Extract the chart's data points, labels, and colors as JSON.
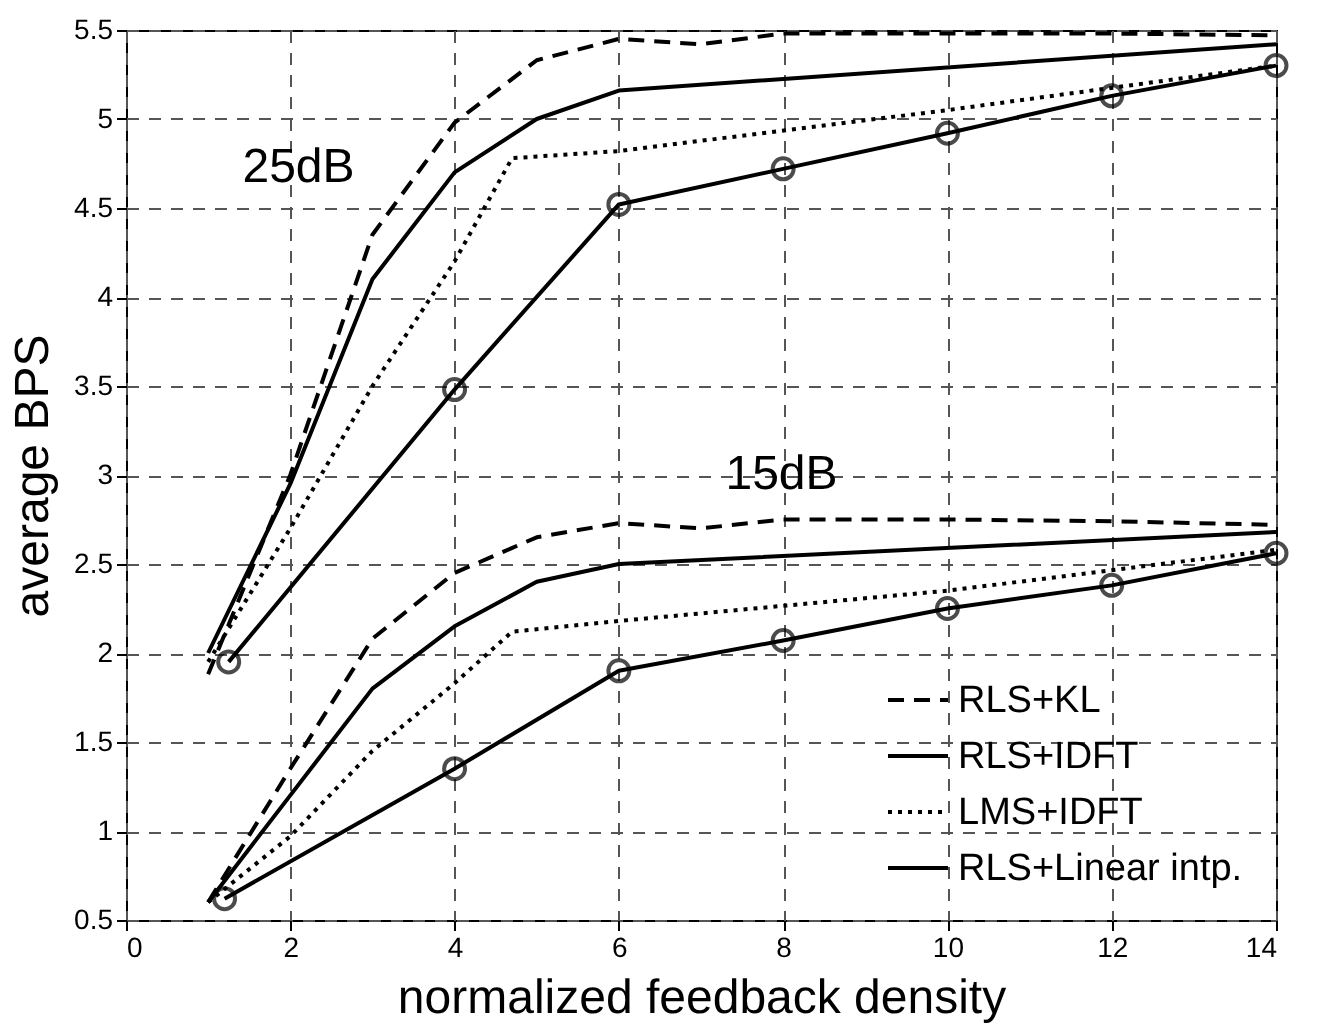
{
  "chart_data": {
    "type": "line",
    "xlabel": "normalized feedback density",
    "ylabel": "average BPS",
    "xlim": [
      0,
      14
    ],
    "ylim": [
      0.5,
      5.5
    ],
    "xticks": [
      0,
      2,
      4,
      6,
      8,
      10,
      12,
      14
    ],
    "yticks": [
      0.5,
      1,
      1.5,
      2,
      2.5,
      3,
      3.5,
      4,
      4.5,
      5,
      5.5
    ],
    "grid": true,
    "legend": "bottom right",
    "annotations": [
      "25dB",
      "15dB"
    ],
    "series": [
      {
        "name": "RLS+KL",
        "color": "#000000",
        "line_style": "dashed",
        "marker": "none",
        "x": [
          1,
          2,
          3,
          4,
          5,
          6,
          7,
          8,
          10,
          12,
          14
        ],
        "values": [
          1.88,
          3.0,
          4.35,
          4.98,
          5.33,
          5.45,
          5.42,
          5.48,
          5.48,
          5.48,
          5.47
        ]
      },
      {
        "name": "RLS+IDFT",
        "color": "#000000",
        "line_style": "solid",
        "marker": "none",
        "x": [
          1,
          2,
          3,
          4,
          5,
          6,
          14
        ],
        "values": [
          2.0,
          2.95,
          4.1,
          4.7,
          5.0,
          5.16,
          5.42
        ]
      },
      {
        "name": "LMS+IDFT",
        "color": "#000000",
        "line_style": "dotted",
        "marker": "none",
        "x": [
          1,
          2,
          3,
          4,
          4.7,
          6,
          10,
          14
        ],
        "values": [
          1.95,
          2.7,
          3.5,
          4.2,
          4.78,
          4.82,
          5.05,
          5.3
        ]
      },
      {
        "name": "RLS+Linear intp.",
        "color": "#000000",
        "line_style": "solid",
        "marker": "circle",
        "x": [
          1.25,
          4,
          6,
          8,
          10,
          12,
          14
        ],
        "values": [
          1.95,
          3.48,
          4.52,
          4.72,
          4.92,
          5.13,
          5.3
        ]
      },
      {
        "color": "#000000",
        "line_style": "dashed",
        "marker": "none",
        "x": [
          1,
          2,
          3,
          4,
          5,
          6,
          7,
          8,
          10,
          12,
          14
        ],
        "values": [
          0.6,
          1.35,
          2.08,
          2.45,
          2.65,
          2.73,
          2.7,
          2.75,
          2.75,
          2.74,
          2.72
        ]
      },
      {
        "color": "#000000",
        "line_style": "solid",
        "marker": "none",
        "x": [
          1,
          2,
          3,
          4,
          5,
          6,
          14
        ],
        "values": [
          0.6,
          1.2,
          1.8,
          2.15,
          2.4,
          2.5,
          2.68
        ]
      },
      {
        "color": "#000000",
        "line_style": "dotted",
        "marker": "none",
        "x": [
          1,
          2,
          3,
          4,
          4.7,
          6,
          10,
          14
        ],
        "values": [
          0.6,
          0.97,
          1.45,
          1.83,
          2.12,
          2.18,
          2.35,
          2.58
        ]
      },
      {
        "color": "#000000",
        "line_style": "solid",
        "marker": "circle",
        "x": [
          1.2,
          4,
          6,
          8,
          10,
          12,
          14
        ],
        "values": [
          0.62,
          1.35,
          1.9,
          2.07,
          2.25,
          2.38,
          2.56
        ]
      }
    ]
  }
}
